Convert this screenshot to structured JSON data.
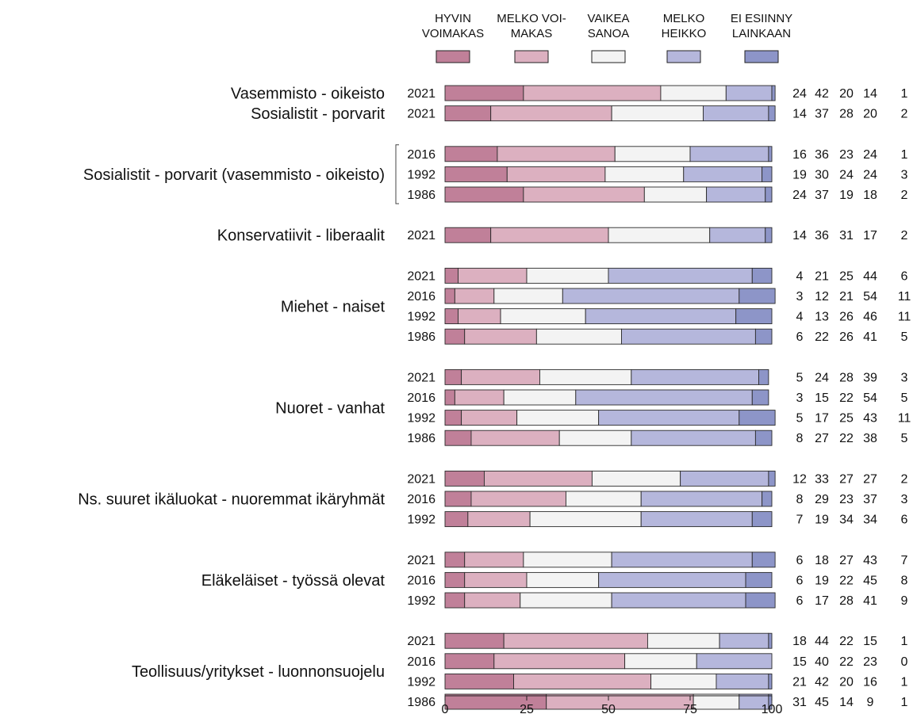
{
  "colors": [
    "#c08099",
    "#dcb0c0",
    "#f3f3f3",
    "#b5b7dc",
    "#8d95c8"
  ],
  "legend": [
    {
      "lines": [
        "HYVIN",
        "VOIMAKAS"
      ]
    },
    {
      "lines": [
        "MELKO VOI-",
        "MAKAS"
      ]
    },
    {
      "lines": [
        "VAIKEA",
        "SANOA"
      ]
    },
    {
      "lines": [
        "MELKO",
        "HEIKKO"
      ]
    },
    {
      "lines": [
        "EI ESIINNY",
        "LAINKAAN"
      ]
    }
  ],
  "chart_data": {
    "type": "bar",
    "orientation": "horizontal",
    "stacked": true,
    "xlim": [
      0,
      100
    ],
    "xticks": [
      0,
      25,
      50,
      75,
      100
    ],
    "series": [
      {
        "name": "HYVIN VOIMAKAS"
      },
      {
        "name": "MELKO VOIMAKAS"
      },
      {
        "name": "VAIKEA SANOA"
      },
      {
        "name": "MELKO HEIKKO"
      },
      {
        "name": "EI ESIINNY LAINKAAN"
      }
    ],
    "groups": [
      {
        "label": "Vasemmisto - oikeisto",
        "rows": [
          {
            "year": "2021",
            "values": [
              24,
              42,
              20,
              14,
              1
            ]
          }
        ]
      },
      {
        "label": "Sosialistit  -  porvarit",
        "rows": [
          {
            "year": "2021",
            "values": [
              14,
              37,
              28,
              20,
              2
            ]
          }
        ]
      },
      {
        "label": "Sosialistit  -  porvarit (vasemmisto - oikeisto)",
        "bracket": true,
        "rows": [
          {
            "year": "2016",
            "values": [
              16,
              36,
              23,
              24,
              1
            ]
          },
          {
            "year": "1992",
            "values": [
              19,
              30,
              24,
              24,
              3
            ]
          },
          {
            "year": "1986",
            "values": [
              24,
              37,
              19,
              18,
              2
            ]
          }
        ]
      },
      {
        "label": "Konservatiivit - liberaalit",
        "rows": [
          {
            "year": "2021",
            "values": [
              14,
              36,
              31,
              17,
              2
            ]
          }
        ]
      },
      {
        "label": "Miehet  - naiset",
        "rows": [
          {
            "year": "2021",
            "values": [
              4,
              21,
              25,
              44,
              6
            ]
          },
          {
            "year": "2016",
            "values": [
              3,
              12,
              21,
              54,
              11
            ]
          },
          {
            "year": "1992",
            "values": [
              4,
              13,
              26,
              46,
              11
            ]
          },
          {
            "year": "1986",
            "values": [
              6,
              22,
              26,
              41,
              5
            ]
          }
        ]
      },
      {
        "label": "Nuoret  -  vanhat",
        "rows": [
          {
            "year": "2021",
            "values": [
              5,
              24,
              28,
              39,
              3
            ]
          },
          {
            "year": "2016",
            "values": [
              3,
              15,
              22,
              54,
              5
            ]
          },
          {
            "year": "1992",
            "values": [
              5,
              17,
              25,
              43,
              11
            ]
          },
          {
            "year": "1986",
            "values": [
              8,
              27,
              22,
              38,
              5
            ]
          }
        ]
      },
      {
        "label": "Ns. suuret ikäluokat  -  nuoremmat ikäryhmät",
        "rows": [
          {
            "year": "2021",
            "values": [
              12,
              33,
              27,
              27,
              2
            ]
          },
          {
            "year": "2016",
            "values": [
              8,
              29,
              23,
              37,
              3
            ]
          },
          {
            "year": "1992",
            "values": [
              7,
              19,
              34,
              34,
              6
            ]
          }
        ]
      },
      {
        "label": "Eläkeläiset  -  työssä olevat",
        "rows": [
          {
            "year": "2021",
            "values": [
              6,
              18,
              27,
              43,
              7
            ]
          },
          {
            "year": "2016",
            "values": [
              6,
              19,
              22,
              45,
              8
            ]
          },
          {
            "year": "1992",
            "values": [
              6,
              17,
              28,
              41,
              9
            ]
          }
        ]
      },
      {
        "label": "Teollisuus/yritykset  -  luonnonsuojelu",
        "rows": [
          {
            "year": "2021",
            "values": [
              18,
              44,
              22,
              15,
              1
            ]
          },
          {
            "year": "2016",
            "values": [
              15,
              40,
              22,
              23,
              0
            ]
          },
          {
            "year": "1992",
            "values": [
              21,
              42,
              20,
              16,
              1
            ]
          },
          {
            "year": "1986",
            "values": [
              31,
              45,
              14,
              9,
              1
            ]
          }
        ]
      }
    ]
  }
}
